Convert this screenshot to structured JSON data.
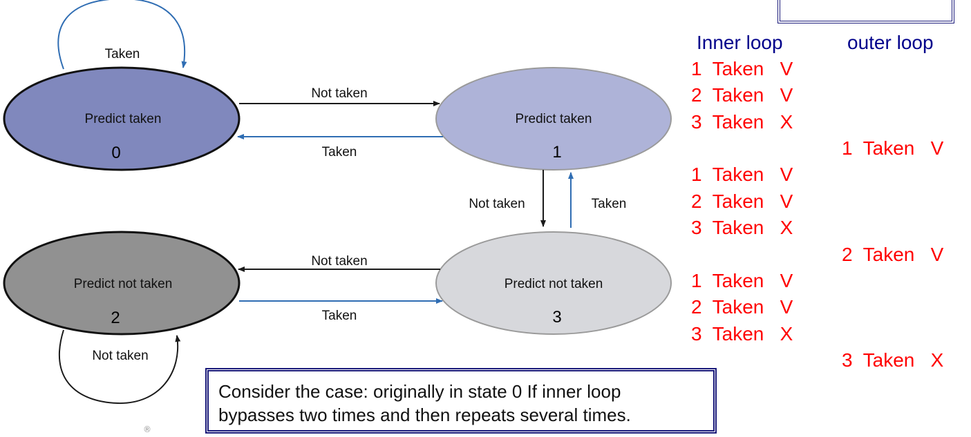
{
  "states": [
    {
      "id": "0",
      "label": "Predict taken",
      "fill": "#8088bd"
    },
    {
      "id": "1",
      "label": "Predict taken",
      "fill": "#aeb3d8"
    },
    {
      "id": "2",
      "label": "Predict not taken",
      "fill": "#919191"
    },
    {
      "id": "3",
      "label": "Predict not taken",
      "fill": "#d7d8dc"
    }
  ],
  "transitions": {
    "s0_self": "Taken",
    "s0_to_s1": "Not taken",
    "s1_to_s0": "Taken",
    "s1_to_s3": "Not taken",
    "s3_to_s1": "Taken",
    "s3_to_s2": "Not taken",
    "s2_to_s3": "Taken",
    "s2_self": "Not taken"
  },
  "colors": {
    "arrow_black": "#1a1a1a",
    "arrow_blue": "#2f6db3",
    "trace": "#ff0000",
    "heading": "#00008b",
    "border": "#1a1a7a"
  },
  "headers": {
    "inner": "Inner loop",
    "outer": "outer loop"
  },
  "inner_trace": [
    "1  Taken   V",
    "2  Taken   V",
    "3  Taken   X",
    "1  Taken   V",
    "2  Taken   V",
    "3  Taken   X",
    "1  Taken   V",
    "2  Taken   V",
    "3  Taken   X"
  ],
  "outer_trace": [
    "1  Taken   V",
    "2  Taken   V",
    "3  Taken   X"
  ],
  "note": {
    "line1": "Consider the case: originally in state 0 If inner loop",
    "line2": "bypasses two times and then repeats several times."
  },
  "registered_mark": "®"
}
